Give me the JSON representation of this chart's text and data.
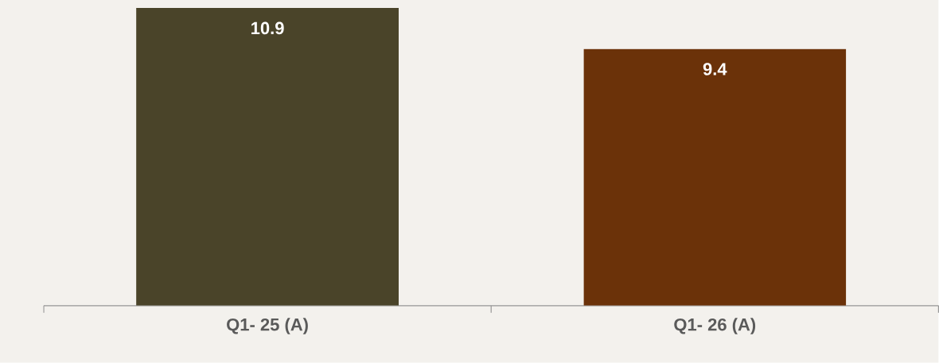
{
  "chart_data": {
    "type": "bar",
    "categories": [
      "Q1- 25 (A)",
      "Q1- 26 (A)"
    ],
    "values": [
      10.9,
      9.4
    ],
    "colors": [
      "#4a4429",
      "#6b3209"
    ],
    "data_labels": true
  }
}
